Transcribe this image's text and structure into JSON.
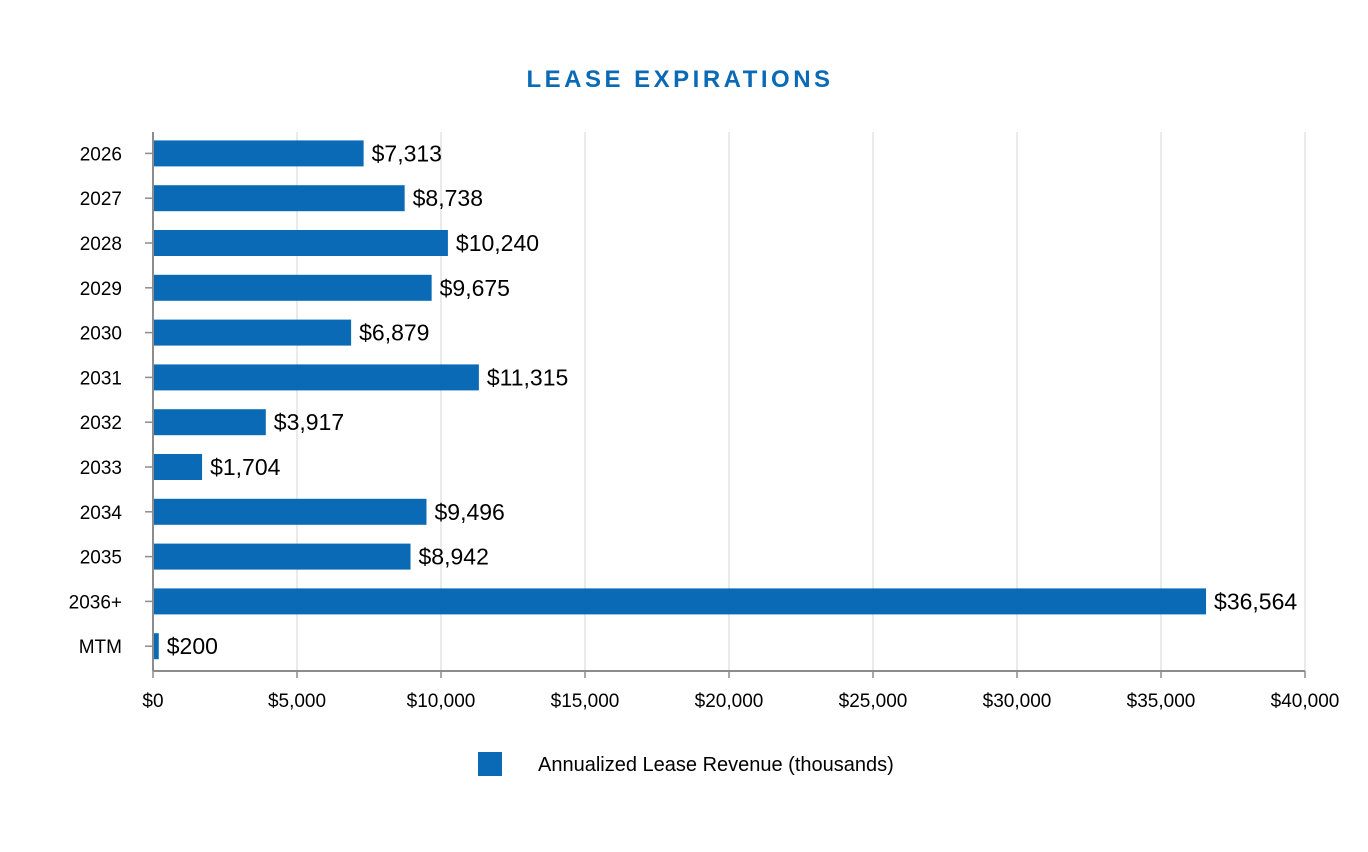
{
  "chart_data": {
    "type": "bar",
    "orientation": "horizontal",
    "title": "LEASE EXPIRATIONS",
    "categories": [
      "2026",
      "2027",
      "2028",
      "2029",
      "2030",
      "2031",
      "2032",
      "2033",
      "2034",
      "2035",
      "2036+",
      "MTM"
    ],
    "series": [
      {
        "name": "Annualized Lease Revenue (thousands)",
        "values": [
          7313,
          8738,
          10240,
          9675,
          6879,
          11315,
          3917,
          1704,
          9496,
          8942,
          36564,
          200
        ],
        "data_labels": [
          "$7,313",
          "$8,738",
          "$10,240",
          "$9,675",
          "$6,879",
          "$11,315",
          "$3,917",
          "$1,704",
          "$9,496",
          "$8,942",
          "$36,564",
          "$200"
        ],
        "color": "#0a6ab6"
      }
    ],
    "xlim": [
      0,
      40000
    ],
    "x_ticks": [
      0,
      5000,
      10000,
      15000,
      20000,
      25000,
      30000,
      35000,
      40000
    ],
    "x_tick_labels": [
      "$0",
      "$5,000",
      "$10,000",
      "$15,000",
      "$20,000",
      "$25,000",
      "$30,000",
      "$35,000",
      "$40,000"
    ],
    "xlabel": "",
    "ylabel": "",
    "grid": "vertical",
    "legend_position": "bottom-center",
    "colors": {
      "bar": "#0a6ab6",
      "title": "#0a6ab6",
      "grid": "#e3e3e3",
      "axis": "#8c8c8c"
    }
  }
}
